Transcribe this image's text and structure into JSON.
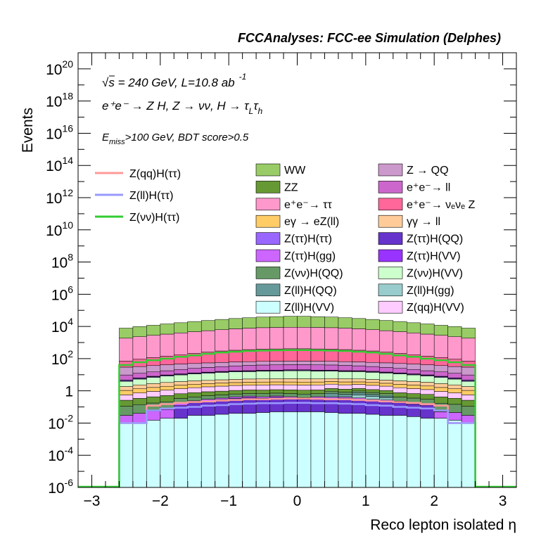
{
  "chart_data": {
    "type": "histogram",
    "title": "FCCAnalyses: FCC-ee Simulation (Delphes)",
    "xlabel": "Reco lepton isolated η",
    "ylabel": "Events",
    "xlim": [
      -3.2,
      3.2
    ],
    "ylog": true,
    "ylim_exponents": [
      -6,
      21
    ],
    "x_ticks": [
      -3,
      -2,
      -1,
      0,
      1,
      2,
      3
    ],
    "x_tick_labels": [
      "−3",
      "−2",
      "−1",
      "0",
      "1",
      "2",
      "3"
    ],
    "y_ticks": [
      {
        "base": "10",
        "exp": "-6",
        "value": 1e-06
      },
      {
        "base": "10",
        "exp": "-4",
        "value": 0.0001
      },
      {
        "base": "10",
        "exp": "-2",
        "value": 0.01
      },
      {
        "base": "1",
        "exp": "",
        "value": 1
      },
      {
        "base": "10",
        "exp": "2",
        "value": 100.0
      },
      {
        "base": "10",
        "exp": "4",
        "value": 10000.0
      },
      {
        "base": "10",
        "exp": "6",
        "value": 1000000.0
      },
      {
        "base": "10",
        "exp": "8",
        "value": 100000000.0
      },
      {
        "base": "10",
        "exp": "10",
        "value": 10000000000.0
      },
      {
        "base": "10",
        "exp": "12",
        "value": 1000000000000.0
      },
      {
        "base": "10",
        "exp": "14",
        "value": 100000000000000.0
      },
      {
        "base": "10",
        "exp": "16",
        "value": 1e+16
      },
      {
        "base": "10",
        "exp": "18",
        "value": 1e+18
      },
      {
        "base": "10",
        "exp": "20",
        "value": 1e+20
      }
    ],
    "annotations": {
      "energy_sqrt": "s",
      "energy_rest": " = 240 GeV, L=10.8 ab",
      "lumi_exp": "-1",
      "process": "e⁺e⁻ → Z H, Z → νν, H → τ",
      "process_sub1": "L",
      "process_tau2": "τ",
      "process_sub2": "h",
      "cut_E": "E",
      "cut_sub": "miss",
      "cut_rest": ">100 GeV, BDT score>0.5"
    },
    "bin_edges": [
      -2.6,
      -2.4,
      -2.2,
      -2.0,
      -1.8,
      -1.6,
      -1.4,
      -1.2,
      -1.0,
      -0.8,
      -0.6,
      -0.4,
      -0.2,
      0.0,
      0.2,
      0.4,
      0.6,
      0.8,
      1.0,
      1.2,
      1.4,
      1.6,
      1.8,
      2.0,
      2.2,
      2.4,
      2.6
    ],
    "stack_order_bottom_to_top": [
      "Z(ll)H(VV)",
      "Z(ττ)H(QQ)",
      "Z(ττ)H(gg)",
      "Z(ll)H(gg)",
      "Z(ll)H(QQ)",
      "Z(νν)H(QQ)",
      "ZZ",
      "Z(qq)H(VV)",
      "eγ → eZ(ll)",
      "γγ → ll",
      "Z(νν)H(VV)",
      "Z(ττ)H(ττ)",
      "Z(ττ)H(VV)",
      "e⁺e⁻→ ll",
      "Z → QQ",
      "e⁺e⁻→ νₑνₑ Z",
      "e⁺e⁻→ ττ",
      "WW"
    ],
    "stacked_backgrounds": [
      {
        "name": "Z(ll)H(VV)",
        "color": "#ccffff",
        "values": [
          0.01,
          0.01,
          0.015,
          0.02,
          0.02,
          0.03,
          0.03,
          0.035,
          0.04,
          0.04,
          0.045,
          0.05,
          0.05,
          0.05,
          0.05,
          0.045,
          0.04,
          0.04,
          0.035,
          0.03,
          0.03,
          0.025,
          0.02,
          0.02,
          0.015,
          0.01
        ]
      },
      {
        "name": "Z(ττ)H(QQ)",
        "color": "#6633cc",
        "values": [
          0,
          0,
          0,
          0,
          0.1,
          0.15,
          0.2,
          0.25,
          0.3,
          0.35,
          0.3,
          0.35,
          0.3,
          0.25,
          0.3,
          0.28,
          0.3,
          0.25,
          0.2,
          0.18,
          0.15,
          0.12,
          0.1,
          0,
          0,
          0
        ]
      },
      {
        "name": "Z(ττ)H(gg)",
        "color": "#cc66ff",
        "values": [
          0.02,
          0.03,
          0.04,
          0.05,
          0.06,
          0.06,
          0.07,
          0.07,
          0.08,
          0.08,
          0.08,
          0.08,
          0.08,
          0.08,
          0.08,
          0.08,
          0.07,
          0.07,
          0.06,
          0.06,
          0.05,
          0.05,
          0.04,
          0.03,
          0.03,
          0.02
        ]
      },
      {
        "name": "Z(ll)H(gg)",
        "color": "#99cccc",
        "values": [
          0,
          0,
          0,
          0,
          0,
          0,
          0,
          0,
          0,
          0,
          0,
          0,
          0,
          0,
          0,
          0,
          0,
          0.2,
          0.15,
          0.1,
          0,
          0,
          0,
          0,
          0,
          0
        ]
      },
      {
        "name": "Z(ll)H(QQ)",
        "color": "#669999",
        "values": [
          0,
          0,
          0,
          0,
          0,
          0,
          0,
          0,
          0,
          0,
          0,
          0,
          0,
          0,
          0,
          0.3,
          0.2,
          0.2,
          0.15,
          0.1,
          0,
          0,
          0,
          0,
          0,
          0
        ]
      },
      {
        "name": "Z(νν)H(QQ)",
        "color": "#669966",
        "values": [
          0.08,
          0.1,
          0.12,
          0.14,
          0.16,
          0.18,
          0.2,
          0.2,
          0.22,
          0.22,
          0.24,
          0.24,
          0.25,
          0.25,
          0.24,
          0.24,
          0.22,
          0.22,
          0.2,
          0.2,
          0.18,
          0.16,
          0.14,
          0.12,
          0.1,
          0.08
        ]
      },
      {
        "name": "ZZ",
        "color": "#669933",
        "values": [
          0.15,
          0.2,
          0.25,
          0.3,
          0.32,
          0.35,
          0.38,
          0.4,
          0.42,
          0.44,
          0.45,
          0.46,
          0.47,
          0.47,
          0.46,
          0.45,
          0.44,
          0.42,
          0.4,
          0.38,
          0.35,
          0.32,
          0.3,
          0.25,
          0.2,
          0.15
        ]
      },
      {
        "name": "Z(qq)H(VV)",
        "color": "#ffccff",
        "values": [
          0.3,
          0.4,
          0.5,
          0.6,
          0.7,
          0.8,
          0.9,
          1.0,
          1.1,
          1.1,
          1.2,
          1.2,
          1.2,
          1.2,
          1.2,
          1.2,
          1.1,
          1.1,
          1.0,
          0.9,
          0.8,
          0.7,
          0.6,
          0.5,
          0.4,
          0.3
        ]
      },
      {
        "name": "eγ → eZ(ll)",
        "color": "#ffcc66",
        "values": [
          0.5,
          0.6,
          0.7,
          0.8,
          0.9,
          1.0,
          1.0,
          1.1,
          1.1,
          1.2,
          1.2,
          1.2,
          1.2,
          1.2,
          1.2,
          1.2,
          1.2,
          1.1,
          1.1,
          1.0,
          1.0,
          0.9,
          0.8,
          0.7,
          0.6,
          0.5
        ]
      },
      {
        "name": "γγ → ll",
        "color": "#ffcc99",
        "values": [
          0.8,
          1.0,
          1.2,
          1.4,
          1.5,
          1.6,
          1.7,
          1.8,
          1.9,
          2.0,
          2.0,
          2.0,
          2.1,
          2.1,
          2.0,
          2.0,
          2.0,
          1.9,
          1.8,
          1.7,
          1.6,
          1.5,
          1.4,
          1.2,
          1.0,
          0.8
        ]
      },
      {
        "name": "Z(νν)H(VV)",
        "color": "#ccffcc",
        "values": [
          2,
          3,
          4,
          5,
          6,
          7,
          8,
          9,
          10,
          10,
          11,
          11,
          12,
          12,
          11,
          11,
          10,
          10,
          9,
          8,
          7,
          6,
          5,
          4,
          3,
          2
        ]
      },
      {
        "name": "Z(ττ)H(ττ)",
        "color": "#9966ff",
        "values": [
          0.5,
          0.6,
          0.7,
          0.8,
          0.9,
          1.0,
          1.1,
          1.2,
          1.3,
          1.4,
          1.4,
          1.5,
          1.5,
          1.5,
          1.5,
          1.4,
          1.4,
          1.3,
          1.2,
          1.1,
          1.0,
          0.9,
          0.8,
          0.7,
          0.6,
          0.5
        ]
      },
      {
        "name": "Z(ττ)H(VV)",
        "color": "#9933ff",
        "values": [
          0.3,
          0.4,
          0.5,
          0.6,
          0.7,
          0.8,
          0.9,
          1.0,
          1.0,
          1.1,
          1.1,
          1.2,
          1.2,
          1.2,
          1.2,
          1.1,
          1.1,
          1.0,
          1.0,
          0.9,
          0.8,
          0.7,
          0.6,
          0.5,
          0.4,
          0.3
        ]
      },
      {
        "name": "e⁺e⁻→ ll",
        "color": "#cc66cc",
        "values": [
          5,
          6,
          7,
          8,
          10,
          12,
          14,
          16,
          18,
          20,
          21,
          22,
          22,
          22,
          22,
          21,
          20,
          18,
          16,
          14,
          12,
          10,
          8,
          7,
          6,
          5
        ]
      },
      {
        "name": "Z → QQ",
        "color": "#cc99cc",
        "values": [
          20,
          20,
          22,
          24,
          25,
          25,
          26,
          26,
          27,
          27,
          28,
          28,
          28,
          28,
          28,
          28,
          27,
          27,
          26,
          26,
          25,
          25,
          24,
          22,
          20,
          20
        ]
      },
      {
        "name": "e⁺e⁻→ νₑνₑ Z",
        "color": "#ff6699",
        "values": [
          40,
          60,
          80,
          100,
          130,
          160,
          200,
          240,
          270,
          300,
          320,
          330,
          340,
          340,
          330,
          320,
          300,
          270,
          240,
          200,
          160,
          130,
          100,
          80,
          60,
          40
        ]
      },
      {
        "name": "e⁺e⁻→ ττ",
        "color": "#ff99cc",
        "values": [
          1800,
          2200,
          2700,
          3200,
          3800,
          4500,
          5200,
          6000,
          6800,
          7500,
          8000,
          8300,
          8500,
          8500,
          8300,
          8000,
          7500,
          6800,
          6000,
          5200,
          4500,
          3800,
          3200,
          2700,
          2200,
          1800
        ]
      },
      {
        "name": "WW",
        "color": "#99cc66",
        "values": [
          6000,
          7500,
          9000,
          11000,
          13000,
          15500,
          18000,
          21000,
          24000,
          27000,
          30000,
          32000,
          34000,
          34000,
          32000,
          30000,
          27000,
          24000,
          21000,
          18000,
          15500,
          13000,
          11000,
          9000,
          7500,
          6000
        ]
      }
    ],
    "signal_lines": [
      {
        "name": "Z(qq)H(ττ)",
        "color": "#ff9999",
        "values": [
          0.01,
          0.01,
          0.12,
          0.15,
          0.18,
          0.2,
          0.22,
          0.25,
          0.27,
          0.3,
          0.3,
          0.32,
          0.33,
          0.33,
          0.32,
          0.3,
          0.3,
          0.27,
          0.25,
          0.22,
          0.2,
          0.18,
          0.15,
          0.12,
          0.01,
          0.01
        ]
      },
      {
        "name": "Z(ll)H(ττ)",
        "color": "#9999ff",
        "values": [
          0.01,
          0.01,
          0.06,
          0.08,
          0.09,
          0.1,
          0.12,
          0.13,
          0.15,
          0.16,
          0.17,
          0.17,
          0.18,
          0.18,
          0.17,
          0.17,
          0.16,
          0.15,
          0.13,
          0.12,
          0.1,
          0.09,
          0.08,
          0.06,
          0.01,
          0.01
        ]
      },
      {
        "name": "Z(νν)H(ττ)",
        "color": "#33cc33",
        "values": [
          40,
          60,
          80,
          100,
          130,
          160,
          200,
          240,
          270,
          300,
          320,
          330,
          340,
          340,
          330,
          320,
          300,
          270,
          240,
          200,
          160,
          130,
          100,
          80,
          60,
          40
        ]
      }
    ],
    "legend_lines_placement": "left",
    "legend_fills_placement": "center-right, two columns",
    "legend_fills": [
      {
        "name": "WW",
        "color": "#99cc66"
      },
      {
        "name": "Z → QQ",
        "color": "#cc99cc"
      },
      {
        "name": "ZZ",
        "color": "#669933"
      },
      {
        "name": "e⁺e⁻→ ll",
        "color": "#cc66cc"
      },
      {
        "name": "e⁺e⁻→ ττ",
        "color": "#ff99cc"
      },
      {
        "name": "e⁺e⁻→ νₑνₑ Z",
        "color": "#ff6699"
      },
      {
        "name": "eγ → eZ(ll)",
        "color": "#ffcc66"
      },
      {
        "name": "γγ → ll",
        "color": "#ffcc99"
      },
      {
        "name": "Z(ττ)H(ττ)",
        "color": "#9966ff"
      },
      {
        "name": "Z(ττ)H(QQ)",
        "color": "#6633cc"
      },
      {
        "name": "Z(ττ)H(gg)",
        "color": "#cc66ff"
      },
      {
        "name": "Z(ττ)H(VV)",
        "color": "#9933ff"
      },
      {
        "name": "Z(νν)H(QQ)",
        "color": "#669966"
      },
      {
        "name": "Z(νν)H(VV)",
        "color": "#ccffcc"
      },
      {
        "name": "Z(ll)H(QQ)",
        "color": "#669999"
      },
      {
        "name": "Z(ll)H(gg)",
        "color": "#99cccc"
      },
      {
        "name": "Z(ll)H(VV)",
        "color": "#ccffff"
      },
      {
        "name": "Z(qq)H(VV)",
        "color": "#ffccff"
      }
    ]
  }
}
